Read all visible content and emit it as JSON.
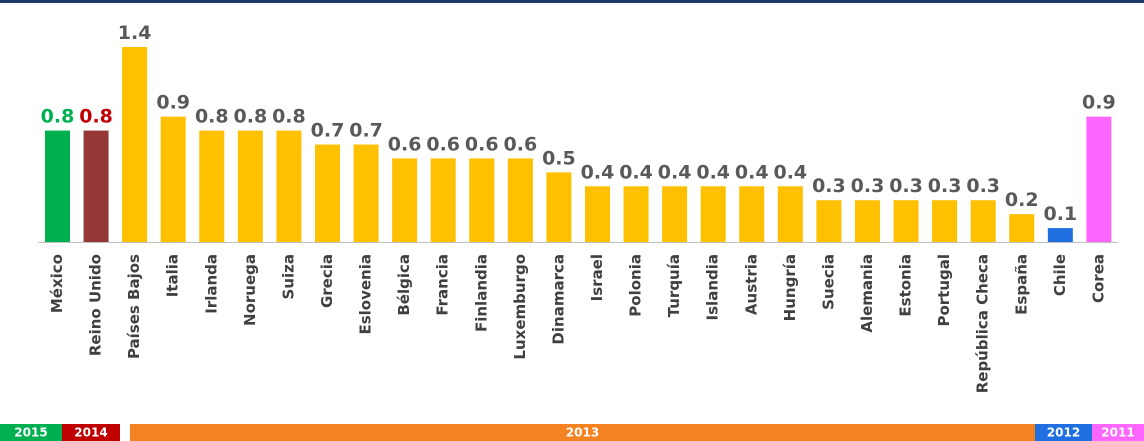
{
  "chart_data": {
    "type": "bar",
    "categories": [
      "México",
      "Reino Unido",
      "Países Bajos",
      "Italia",
      "Irlanda",
      "Noruega",
      "Suiza",
      "Grecia",
      "Eslovenia",
      "Bélgica",
      "Francia",
      "Finlandia",
      "Luxemburgo",
      "Dinamarca",
      "Israel",
      "Polonia",
      "Turquía",
      "Islandia",
      "Austria",
      "Hungría",
      "Suecia",
      "Alemania",
      "Estonia",
      "Portugal",
      "República Checa",
      "España",
      "Chile",
      "Corea"
    ],
    "values": [
      0.8,
      0.8,
      1.4,
      0.9,
      0.8,
      0.8,
      0.8,
      0.7,
      0.7,
      0.6,
      0.6,
      0.6,
      0.6,
      0.5,
      0.4,
      0.4,
      0.4,
      0.4,
      0.4,
      0.4,
      0.3,
      0.3,
      0.3,
      0.3,
      0.3,
      0.2,
      0.1,
      0.9
    ],
    "colors": [
      "#00b050",
      "#953735",
      "#ffc000",
      "#ffc000",
      "#ffc000",
      "#ffc000",
      "#ffc000",
      "#ffc000",
      "#ffc000",
      "#ffc000",
      "#ffc000",
      "#ffc000",
      "#ffc000",
      "#ffc000",
      "#ffc000",
      "#ffc000",
      "#ffc000",
      "#ffc000",
      "#ffc000",
      "#ffc000",
      "#ffc000",
      "#ffc000",
      "#ffc000",
      "#ffc000",
      "#ffc000",
      "#ffc000",
      "#1f6fe0",
      "#ff66ff"
    ],
    "label_colors": [
      "#00b050",
      "#c00000",
      "#595959",
      "#595959",
      "#595959",
      "#595959",
      "#595959",
      "#595959",
      "#595959",
      "#595959",
      "#595959",
      "#595959",
      "#595959",
      "#595959",
      "#595959",
      "#595959",
      "#595959",
      "#595959",
      "#595959",
      "#595959",
      "#595959",
      "#595959",
      "#595959",
      "#595959",
      "#595959",
      "#595959",
      "#595959",
      "#595959"
    ],
    "periods": [
      {
        "label": "2015",
        "color": "#00b050"
      },
      {
        "label": "2014",
        "color": "#c00000"
      },
      {
        "label": "2013",
        "color": "#f58220"
      },
      {
        "label": "2012",
        "color": "#1f6fe0"
      },
      {
        "label": "2011",
        "color": "#ff66ff"
      }
    ]
  }
}
